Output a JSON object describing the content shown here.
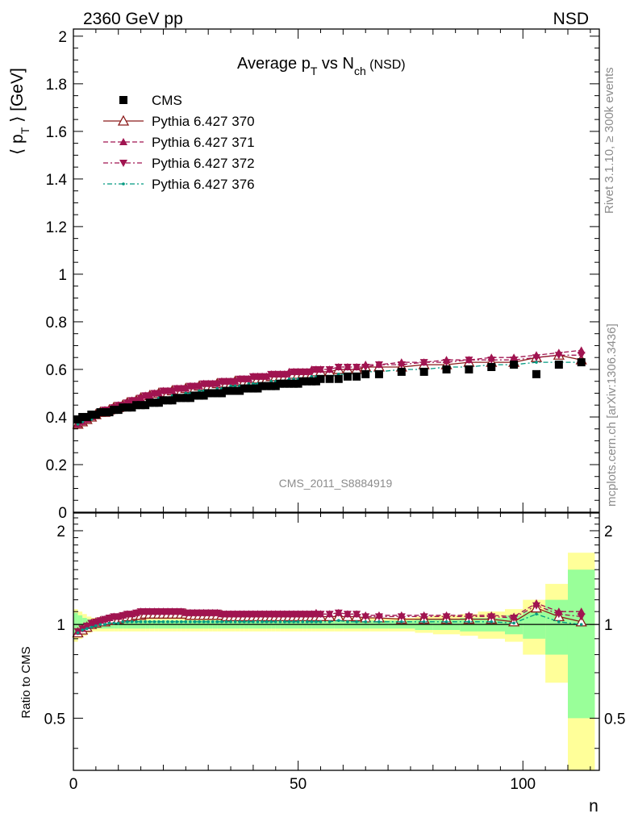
{
  "header": {
    "left": "2360 GeV pp",
    "right": "NSD"
  },
  "side_text": {
    "rivet": "Rivet 3.1.10, ≥ 300k events",
    "mcplots": "mcplots.cern.ch [arXiv:1306.3436]"
  },
  "analysis_id": "CMS_2011_S8884919",
  "colors": {
    "cms": "#000000",
    "p370": "#8b1a1a",
    "p371": "#a01450",
    "p372": "#a01450",
    "p376": "#009980",
    "band_inner": "#99ff99",
    "band_outer": "#ffff99"
  },
  "chart_data": [
    {
      "type": "scatter",
      "title": {
        "main": "Average p",
        "sub1": "T",
        "mid": " vs N",
        "sub2": "ch",
        "tail": " (NSD)"
      },
      "ylabel": {
        "pre": "⟨ p",
        "sub": "T",
        "post": " ⟩ [GeV]"
      },
      "xlim": [
        0,
        117
      ],
      "ylim": [
        0,
        2.03
      ],
      "yticks": [
        "0",
        "0.2",
        "0.4",
        "0.6",
        "0.8",
        "1",
        "1.2",
        "1.4",
        "1.6",
        "1.8",
        "2"
      ],
      "legend_position": "top-left",
      "legend": [
        {
          "label": "CMS",
          "marker": "square"
        },
        {
          "label": "Pythia 6.427 370",
          "marker": "triangle-open"
        },
        {
          "label": "Pythia 6.427 371",
          "marker": "triangle-up"
        },
        {
          "label": "Pythia 6.427 372",
          "marker": "triangle-down"
        },
        {
          "label": "Pythia 6.427 376",
          "marker": "dot"
        }
      ],
      "x": [
        1,
        2,
        3,
        4,
        5,
        6,
        7,
        8,
        9,
        10,
        11,
        12,
        13,
        14,
        15,
        16,
        17,
        18,
        19,
        20,
        21,
        22,
        23,
        24,
        25,
        26,
        27,
        28,
        29,
        30,
        31,
        32,
        33,
        34,
        35,
        36,
        37,
        38,
        39,
        40,
        41,
        42,
        43,
        44,
        45,
        46,
        47,
        48,
        49,
        50,
        51,
        52,
        53,
        54,
        55,
        57,
        59,
        61,
        63,
        65,
        68,
        73,
        78,
        83,
        88,
        93,
        98,
        103,
        108,
        113
      ],
      "series": [
        {
          "name": "CMS",
          "values": [
            0.39,
            0.4,
            0.4,
            0.41,
            0.41,
            0.42,
            0.42,
            0.42,
            0.43,
            0.43,
            0.44,
            0.44,
            0.44,
            0.45,
            0.45,
            0.45,
            0.46,
            0.46,
            0.46,
            0.47,
            0.47,
            0.47,
            0.48,
            0.48,
            0.48,
            0.48,
            0.49,
            0.49,
            0.49,
            0.5,
            0.5,
            0.5,
            0.5,
            0.51,
            0.51,
            0.51,
            0.51,
            0.52,
            0.52,
            0.52,
            0.52,
            0.53,
            0.53,
            0.53,
            0.53,
            0.54,
            0.54,
            0.54,
            0.54,
            0.54,
            0.55,
            0.55,
            0.55,
            0.55,
            0.56,
            0.56,
            0.56,
            0.57,
            0.57,
            0.58,
            0.58,
            0.59,
            0.59,
            0.6,
            0.6,
            0.61,
            0.62,
            0.58,
            0.62,
            0.63
          ]
        },
        {
          "name": "Pythia 6.427 370",
          "values": [
            0.37,
            0.38,
            0.39,
            0.4,
            0.41,
            0.42,
            0.42,
            0.43,
            0.44,
            0.44,
            0.45,
            0.46,
            0.46,
            0.47,
            0.48,
            0.48,
            0.49,
            0.49,
            0.5,
            0.5,
            0.5,
            0.51,
            0.51,
            0.51,
            0.52,
            0.52,
            0.52,
            0.53,
            0.53,
            0.53,
            0.53,
            0.54,
            0.54,
            0.54,
            0.54,
            0.55,
            0.55,
            0.55,
            0.55,
            0.56,
            0.56,
            0.56,
            0.56,
            0.57,
            0.57,
            0.57,
            0.57,
            0.57,
            0.58,
            0.58,
            0.58,
            0.58,
            0.58,
            0.59,
            0.59,
            0.59,
            0.6,
            0.6,
            0.6,
            0.61,
            0.61,
            0.61,
            0.62,
            0.62,
            0.63,
            0.63,
            0.63,
            0.65,
            0.66,
            0.64
          ]
        },
        {
          "name": "Pythia 6.427 371",
          "values": [
            0.37,
            0.38,
            0.39,
            0.4,
            0.41,
            0.42,
            0.43,
            0.43,
            0.44,
            0.45,
            0.45,
            0.46,
            0.47,
            0.47,
            0.48,
            0.49,
            0.49,
            0.5,
            0.5,
            0.51,
            0.51,
            0.51,
            0.52,
            0.52,
            0.52,
            0.53,
            0.53,
            0.53,
            0.54,
            0.54,
            0.54,
            0.54,
            0.55,
            0.55,
            0.55,
            0.55,
            0.56,
            0.56,
            0.56,
            0.57,
            0.57,
            0.57,
            0.57,
            0.58,
            0.58,
            0.58,
            0.58,
            0.59,
            0.59,
            0.59,
            0.59,
            0.59,
            0.6,
            0.6,
            0.6,
            0.6,
            0.61,
            0.61,
            0.61,
            0.62,
            0.62,
            0.63,
            0.63,
            0.64,
            0.64,
            0.65,
            0.65,
            0.66,
            0.67,
            0.68
          ]
        },
        {
          "name": "Pythia 6.427 372",
          "values": [
            0.37,
            0.38,
            0.39,
            0.4,
            0.41,
            0.42,
            0.43,
            0.43,
            0.44,
            0.45,
            0.45,
            0.46,
            0.47,
            0.47,
            0.48,
            0.49,
            0.49,
            0.5,
            0.5,
            0.51,
            0.51,
            0.51,
            0.52,
            0.52,
            0.52,
            0.53,
            0.53,
            0.53,
            0.54,
            0.54,
            0.54,
            0.54,
            0.55,
            0.55,
            0.55,
            0.55,
            0.56,
            0.56,
            0.56,
            0.57,
            0.57,
            0.57,
            0.57,
            0.58,
            0.58,
            0.58,
            0.58,
            0.58,
            0.59,
            0.59,
            0.59,
            0.59,
            0.59,
            0.6,
            0.6,
            0.6,
            0.61,
            0.61,
            0.61,
            0.61,
            0.62,
            0.62,
            0.63,
            0.63,
            0.64,
            0.64,
            0.64,
            0.65,
            0.66,
            0.66
          ]
        },
        {
          "name": "Pythia 6.427 376",
          "values": [
            0.37,
            0.38,
            0.39,
            0.39,
            0.4,
            0.41,
            0.41,
            0.42,
            0.43,
            0.43,
            0.44,
            0.44,
            0.45,
            0.45,
            0.46,
            0.46,
            0.47,
            0.47,
            0.48,
            0.48,
            0.48,
            0.49,
            0.49,
            0.49,
            0.5,
            0.5,
            0.5,
            0.51,
            0.51,
            0.51,
            0.51,
            0.52,
            0.52,
            0.52,
            0.53,
            0.53,
            0.53,
            0.53,
            0.54,
            0.54,
            0.54,
            0.54,
            0.54,
            0.55,
            0.55,
            0.55,
            0.55,
            0.56,
            0.56,
            0.56,
            0.56,
            0.56,
            0.57,
            0.57,
            0.57,
            0.57,
            0.58,
            0.58,
            0.58,
            0.59,
            0.59,
            0.6,
            0.6,
            0.61,
            0.61,
            0.62,
            0.62,
            0.63,
            0.63,
            0.63
          ]
        }
      ]
    },
    {
      "type": "scatter",
      "ylabel": "Ratio to CMS",
      "xlabel": "n",
      "xlim": [
        0,
        117
      ],
      "ylim": [
        0.34,
        2.28
      ],
      "yticks": [
        "0.5",
        "1",
        "2"
      ],
      "xticks": [
        "0",
        "50",
        "100"
      ],
      "uncertainty_bands": {
        "x_edges": [
          0,
          1,
          2,
          3,
          4,
          5,
          6,
          7,
          8,
          9,
          10,
          11,
          12,
          13,
          14,
          15,
          16,
          17,
          18,
          19,
          20,
          21,
          22,
          23,
          24,
          25,
          26,
          27,
          28,
          29,
          30,
          31,
          32,
          33,
          34,
          35,
          36,
          37,
          38,
          39,
          40,
          41,
          42,
          43,
          44,
          45,
          46,
          47,
          48,
          49,
          50,
          51,
          52,
          53,
          54,
          55,
          56,
          58,
          60,
          62,
          64,
          66,
          70,
          76,
          80,
          86,
          90,
          96,
          100,
          105,
          110,
          116
        ],
        "inner": [
          0.09,
          0.07,
          0.05,
          0.04,
          0.03,
          0.03,
          0.03,
          0.03,
          0.03,
          0.03,
          0.03,
          0.03,
          0.03,
          0.03,
          0.03,
          0.03,
          0.03,
          0.03,
          0.03,
          0.03,
          0.03,
          0.03,
          0.03,
          0.03,
          0.03,
          0.03,
          0.03,
          0.03,
          0.03,
          0.03,
          0.03,
          0.03,
          0.03,
          0.03,
          0.03,
          0.03,
          0.03,
          0.03,
          0.03,
          0.03,
          0.03,
          0.03,
          0.03,
          0.03,
          0.03,
          0.03,
          0.03,
          0.03,
          0.03,
          0.03,
          0.03,
          0.03,
          0.03,
          0.03,
          0.03,
          0.03,
          0.03,
          0.03,
          0.03,
          0.03,
          0.03,
          0.03,
          0.03,
          0.04,
          0.04,
          0.05,
          0.05,
          0.07,
          0.1,
          0.2,
          0.5,
          0.6
        ],
        "outer": [
          0.12,
          0.1,
          0.08,
          0.06,
          0.05,
          0.05,
          0.05,
          0.05,
          0.05,
          0.05,
          0.05,
          0.05,
          0.05,
          0.05,
          0.05,
          0.05,
          0.05,
          0.05,
          0.05,
          0.05,
          0.05,
          0.05,
          0.05,
          0.05,
          0.05,
          0.05,
          0.05,
          0.05,
          0.05,
          0.05,
          0.05,
          0.05,
          0.05,
          0.05,
          0.05,
          0.05,
          0.05,
          0.05,
          0.05,
          0.05,
          0.05,
          0.05,
          0.05,
          0.05,
          0.05,
          0.05,
          0.05,
          0.05,
          0.05,
          0.05,
          0.05,
          0.05,
          0.05,
          0.05,
          0.05,
          0.05,
          0.05,
          0.05,
          0.05,
          0.05,
          0.05,
          0.05,
          0.05,
          0.06,
          0.07,
          0.08,
          0.1,
          0.12,
          0.2,
          0.35,
          0.7,
          1.0
        ]
      },
      "x": [
        1,
        2,
        3,
        4,
        5,
        6,
        7,
        8,
        9,
        10,
        11,
        12,
        13,
        14,
        15,
        16,
        17,
        18,
        19,
        20,
        21,
        22,
        23,
        24,
        25,
        26,
        27,
        28,
        29,
        30,
        31,
        32,
        33,
        34,
        35,
        36,
        37,
        38,
        39,
        40,
        41,
        42,
        43,
        44,
        45,
        46,
        47,
        48,
        49,
        50,
        51,
        52,
        53,
        54,
        55,
        57,
        59,
        61,
        63,
        65,
        68,
        73,
        78,
        83,
        88,
        93,
        98,
        103,
        108,
        113
      ],
      "series": [
        {
          "name": "Pythia 6.427 370",
          "values": [
            0.94,
            0.96,
            0.98,
            1.0,
            1.01,
            1.02,
            1.02,
            1.03,
            1.04,
            1.04,
            1.05,
            1.06,
            1.06,
            1.07,
            1.07,
            1.08,
            1.08,
            1.08,
            1.08,
            1.08,
            1.08,
            1.08,
            1.08,
            1.08,
            1.08,
            1.07,
            1.07,
            1.07,
            1.07,
            1.07,
            1.07,
            1.07,
            1.07,
            1.06,
            1.06,
            1.06,
            1.06,
            1.06,
            1.06,
            1.06,
            1.06,
            1.06,
            1.06,
            1.06,
            1.06,
            1.06,
            1.06,
            1.06,
            1.06,
            1.06,
            1.06,
            1.06,
            1.06,
            1.06,
            1.06,
            1.06,
            1.06,
            1.06,
            1.06,
            1.05,
            1.05,
            1.04,
            1.04,
            1.04,
            1.04,
            1.04,
            1.02,
            1.13,
            1.06,
            1.02
          ]
        },
        {
          "name": "Pythia 6.427 371",
          "values": [
            0.95,
            0.97,
            0.99,
            1.01,
            1.02,
            1.03,
            1.04,
            1.05,
            1.06,
            1.06,
            1.07,
            1.08,
            1.08,
            1.09,
            1.1,
            1.1,
            1.1,
            1.1,
            1.1,
            1.1,
            1.1,
            1.1,
            1.1,
            1.1,
            1.09,
            1.09,
            1.09,
            1.09,
            1.09,
            1.09,
            1.09,
            1.09,
            1.08,
            1.08,
            1.08,
            1.08,
            1.08,
            1.08,
            1.08,
            1.08,
            1.08,
            1.08,
            1.08,
            1.08,
            1.08,
            1.08,
            1.08,
            1.08,
            1.08,
            1.08,
            1.08,
            1.08,
            1.08,
            1.09,
            1.08,
            1.08,
            1.09,
            1.08,
            1.08,
            1.07,
            1.07,
            1.07,
            1.07,
            1.07,
            1.07,
            1.07,
            1.06,
            1.17,
            1.1,
            1.1
          ]
        },
        {
          "name": "Pythia 6.427 372",
          "values": [
            0.95,
            0.97,
            0.99,
            1.01,
            1.02,
            1.03,
            1.04,
            1.05,
            1.06,
            1.06,
            1.07,
            1.08,
            1.08,
            1.09,
            1.1,
            1.1,
            1.1,
            1.1,
            1.1,
            1.1,
            1.1,
            1.1,
            1.1,
            1.1,
            1.09,
            1.09,
            1.09,
            1.09,
            1.09,
            1.09,
            1.09,
            1.09,
            1.08,
            1.08,
            1.08,
            1.08,
            1.08,
            1.08,
            1.08,
            1.08,
            1.08,
            1.08,
            1.08,
            1.08,
            1.08,
            1.08,
            1.08,
            1.08,
            1.08,
            1.08,
            1.08,
            1.08,
            1.08,
            1.08,
            1.08,
            1.08,
            1.09,
            1.08,
            1.08,
            1.06,
            1.06,
            1.06,
            1.06,
            1.06,
            1.06,
            1.06,
            1.05,
            1.15,
            1.08,
            1.06
          ]
        },
        {
          "name": "Pythia 6.427 376",
          "values": [
            0.94,
            0.96,
            0.97,
            0.98,
            0.99,
            1.0,
            1.0,
            1.01,
            1.01,
            1.01,
            1.02,
            1.02,
            1.02,
            1.02,
            1.02,
            1.02,
            1.02,
            1.02,
            1.02,
            1.02,
            1.02,
            1.02,
            1.02,
            1.02,
            1.02,
            1.02,
            1.02,
            1.02,
            1.02,
            1.02,
            1.02,
            1.02,
            1.02,
            1.02,
            1.02,
            1.02,
            1.02,
            1.02,
            1.02,
            1.02,
            1.02,
            1.02,
            1.02,
            1.02,
            1.02,
            1.02,
            1.02,
            1.02,
            1.02,
            1.02,
            1.02,
            1.02,
            1.02,
            1.02,
            1.02,
            1.02,
            1.03,
            1.02,
            1.02,
            1.02,
            1.02,
            1.02,
            1.02,
            1.02,
            1.02,
            1.02,
            1.01,
            1.08,
            1.02,
            1.0
          ]
        }
      ]
    }
  ]
}
